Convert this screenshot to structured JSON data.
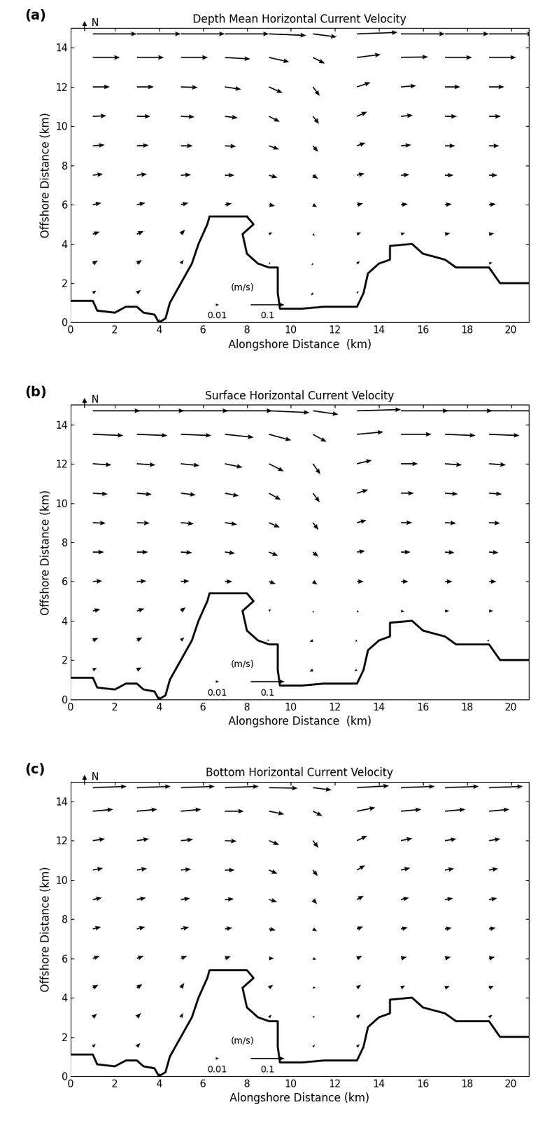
{
  "chart_data": [
    {
      "type": "quiver",
      "panel": "(a)",
      "title": "Depth Mean Horizontal Current Velocity",
      "x_label": "Alongshore Distance  (km)",
      "y_label": "Offshore Distance (km)",
      "north_label": "N",
      "key": {
        "unit": "(m/s)",
        "values": [
          0.01,
          0.1
        ]
      },
      "xlim": [
        0,
        20.8
      ],
      "ylim": [
        0,
        15
      ],
      "xticks": [
        0,
        2,
        4,
        6,
        8,
        10,
        12,
        14,
        16,
        18,
        20
      ],
      "yticks": [
        0,
        2,
        4,
        6,
        8,
        10,
        12,
        14
      ],
      "color": "#000000",
      "coastline": {
        "x": [
          0,
          1,
          1.2,
          2,
          2.5,
          3,
          3.3,
          3.8,
          4,
          4.3,
          4.5,
          5,
          5.5,
          5.8,
          6.2,
          6.3,
          8,
          8.3,
          7.8,
          8,
          8.5,
          9,
          9.4,
          9.4,
          9.5,
          10.5,
          11.5,
          13,
          13.3,
          13.5,
          14,
          14.5,
          14.5,
          15.5,
          16,
          17,
          17.5,
          19,
          19.5,
          20.8
        ],
        "y": [
          1.1,
          1.1,
          0.6,
          0.5,
          0.8,
          0.8,
          0.5,
          0.4,
          0,
          0.2,
          1,
          2,
          3,
          4,
          5,
          5.4,
          5.4,
          5,
          4.5,
          3.5,
          3,
          2.8,
          2.8,
          1.5,
          0.7,
          0.7,
          0.8,
          0.8,
          1.5,
          2.5,
          3,
          3.2,
          3.9,
          4,
          3.5,
          3.2,
          2.8,
          2.8,
          2,
          2
        ]
      },
      "x": [
        1,
        3,
        5,
        7,
        9,
        11,
        13,
        15,
        17,
        19
      ],
      "y": [
        1.5,
        3,
        4.5,
        6,
        7.5,
        9,
        10.5,
        12,
        13.5,
        14.7
      ],
      "u": [
        [
          0.01,
          0.012,
          null,
          null,
          null,
          -0.005,
          0.005,
          null,
          null,
          null
        ],
        [
          0.015,
          0.015,
          0.008,
          null,
          0.005,
          -0.004,
          0.008,
          null,
          null,
          0.01
        ],
        [
          0.02,
          0.02,
          0.012,
          null,
          0.01,
          0.006,
          0.012,
          0.012,
          0.015,
          0.015
        ],
        [
          0.025,
          0.025,
          0.022,
          0.02,
          0.018,
          0.012,
          0.018,
          0.02,
          0.02,
          0.02
        ],
        [
          0.03,
          0.03,
          0.03,
          0.028,
          0.025,
          0.015,
          0.022,
          0.025,
          0.025,
          0.025
        ],
        [
          0.035,
          0.035,
          0.035,
          0.033,
          0.03,
          0.015,
          0.025,
          0.03,
          0.03,
          0.03
        ],
        [
          0.04,
          0.04,
          0.04,
          0.038,
          0.032,
          0.018,
          0.03,
          0.035,
          0.035,
          0.035
        ],
        [
          0.05,
          0.05,
          0.05,
          0.048,
          0.04,
          0.02,
          0.04,
          0.045,
          0.045,
          0.045
        ],
        [
          0.08,
          0.08,
          0.08,
          0.075,
          0.06,
          0.035,
          0.07,
          0.08,
          0.08,
          0.08
        ],
        [
          0.13,
          0.13,
          0.13,
          0.13,
          0.11,
          0.07,
          0.12,
          0.13,
          0.13,
          0.13
        ]
      ],
      "v": [
        [
          0.008,
          0.01,
          null,
          null,
          null,
          -0.008,
          0.006,
          null,
          null,
          null
        ],
        [
          0.01,
          0.012,
          0.012,
          null,
          0.004,
          -0.006,
          0.008,
          null,
          null,
          0.004
        ],
        [
          0.008,
          0.01,
          0.015,
          null,
          0.006,
          -0.006,
          0.006,
          0.004,
          0.003,
          0.002
        ],
        [
          0.006,
          0.006,
          0.006,
          0.004,
          -0.004,
          -0.008,
          0.004,
          0.002,
          0.002,
          0.002
        ],
        [
          0.004,
          0.004,
          0.002,
          0.0,
          -0.008,
          -0.012,
          0.006,
          0.002,
          0.0,
          0.0
        ],
        [
          0.003,
          0.002,
          0.0,
          -0.002,
          -0.012,
          -0.02,
          0.01,
          0.003,
          0.0,
          0.0
        ],
        [
          0.002,
          0.0,
          -0.002,
          -0.005,
          -0.018,
          -0.025,
          0.015,
          0.004,
          0.0,
          0.0
        ],
        [
          0,
          0,
          -0.002,
          -0.008,
          -0.02,
          -0.03,
          0.015,
          0.004,
          0,
          0
        ],
        [
          0,
          0,
          0,
          -0.005,
          -0.015,
          -0.02,
          0.01,
          0.002,
          0,
          0
        ],
        [
          0,
          0,
          0,
          0,
          -0.005,
          -0.01,
          0.005,
          0,
          0,
          0
        ]
      ]
    },
    {
      "type": "quiver",
      "panel": "(b)",
      "title": "Surface Horizontal Current Velocity",
      "x_label": "Alongshore Distance  (km)",
      "y_label": "Offshore Distance (km)",
      "north_label": "N",
      "key": {
        "unit": "(m/s)",
        "values": [
          0.01,
          0.1
        ]
      },
      "xlim": [
        0,
        20.8
      ],
      "ylim": [
        0,
        15
      ],
      "xticks": [
        0,
        2,
        4,
        6,
        8,
        10,
        12,
        14,
        16,
        18,
        20
      ],
      "yticks": [
        0,
        2,
        4,
        6,
        8,
        10,
        12,
        14
      ],
      "color": "#000000",
      "coastline": {
        "x": [
          0,
          1,
          1.2,
          2,
          2.5,
          3,
          3.3,
          3.8,
          4,
          4.3,
          4.5,
          5,
          5.5,
          5.8,
          6.2,
          6.3,
          8,
          8.3,
          7.8,
          8,
          8.5,
          9,
          9.4,
          9.4,
          9.5,
          10.5,
          11.5,
          13,
          13.3,
          13.5,
          14,
          14.5,
          14.5,
          15.5,
          16,
          17,
          17.5,
          19,
          19.5,
          20.8
        ],
        "y": [
          1.1,
          1.1,
          0.6,
          0.5,
          0.8,
          0.8,
          0.5,
          0.4,
          0,
          0.2,
          1,
          2,
          3,
          4,
          5,
          5.4,
          5.4,
          5,
          4.5,
          3.5,
          3,
          2.8,
          2.8,
          1.5,
          0.7,
          0.7,
          0.8,
          0.8,
          1.5,
          2.5,
          3,
          3.2,
          3.9,
          4,
          3.5,
          3.2,
          2.8,
          2.8,
          2,
          2
        ]
      },
      "x": [
        1,
        3,
        5,
        7,
        9,
        11,
        13,
        15,
        17,
        19
      ],
      "y": [
        1.5,
        3,
        4.5,
        6,
        7.5,
        9,
        10.5,
        12,
        13.5,
        14.7
      ],
      "u": [
        [
          0.012,
          0.014,
          null,
          null,
          null,
          -0.01,
          -0.008,
          null,
          null,
          null
        ],
        [
          0.016,
          0.016,
          0.01,
          null,
          -0.006,
          -0.01,
          -0.006,
          null,
          null,
          -0.006
        ],
        [
          0.022,
          0.022,
          0.014,
          null,
          0.006,
          0.002,
          0.006,
          0.01,
          0.012,
          0.012
        ],
        [
          0.028,
          0.028,
          0.025,
          0.022,
          0.02,
          0.013,
          0.02,
          0.022,
          0.022,
          0.022
        ],
        [
          0.033,
          0.033,
          0.033,
          0.03,
          0.027,
          0.016,
          0.024,
          0.028,
          0.028,
          0.028
        ],
        [
          0.038,
          0.038,
          0.038,
          0.036,
          0.032,
          0.016,
          0.028,
          0.033,
          0.033,
          0.033
        ],
        [
          0.044,
          0.044,
          0.044,
          0.041,
          0.035,
          0.02,
          0.033,
          0.038,
          0.038,
          0.038
        ],
        [
          0.055,
          0.055,
          0.055,
          0.052,
          0.044,
          0.022,
          0.044,
          0.05,
          0.05,
          0.05
        ],
        [
          0.09,
          0.09,
          0.09,
          0.085,
          0.066,
          0.04,
          0.078,
          0.09,
          0.09,
          0.09
        ],
        [
          0.14,
          0.14,
          0.14,
          0.14,
          0.12,
          0.075,
          0.13,
          0.14,
          0.14,
          0.14
        ]
      ],
      "v": [
        [
          0.006,
          0.008,
          null,
          null,
          null,
          -0.006,
          -0.004,
          null,
          null,
          null
        ],
        [
          0.008,
          0.01,
          0.01,
          null,
          0.002,
          -0.004,
          -0.004,
          null,
          null,
          -0.002
        ],
        [
          0.006,
          0.008,
          0.012,
          null,
          0.006,
          -0.006,
          -0.004,
          -0.002,
          0,
          0
        ],
        [
          0.002,
          0.002,
          0.002,
          0.0,
          -0.008,
          -0.01,
          0.0,
          0,
          0,
          0
        ],
        [
          0,
          0,
          -0.002,
          -0.004,
          -0.012,
          -0.015,
          0.004,
          0,
          -0.002,
          -0.002
        ],
        [
          -0.002,
          -0.002,
          -0.004,
          -0.006,
          -0.016,
          -0.024,
          0.008,
          0,
          -0.002,
          -0.002
        ],
        [
          -0.003,
          -0.004,
          -0.006,
          -0.009,
          -0.022,
          -0.03,
          0.012,
          0,
          -0.003,
          -0.003
        ],
        [
          -0.004,
          -0.004,
          -0.006,
          -0.012,
          -0.025,
          -0.035,
          0.012,
          0,
          -0.004,
          -0.004
        ],
        [
          -0.004,
          -0.004,
          -0.004,
          -0.01,
          -0.02,
          -0.025,
          0.008,
          0,
          -0.004,
          -0.004
        ],
        [
          0,
          0,
          0,
          0,
          -0.006,
          -0.012,
          0.004,
          0,
          0,
          0
        ]
      ]
    },
    {
      "type": "quiver",
      "panel": "(c)",
      "title": "Bottom Horizontal Current Velocity",
      "x_label": "Alongshore Distance (km)",
      "y_label": "Offshore Distance (km)",
      "north_label": "N",
      "key": {
        "unit": "(m/s)",
        "values": [
          0.01,
          0.1
        ]
      },
      "xlim": [
        0,
        20.8
      ],
      "ylim": [
        0,
        15
      ],
      "xticks": [
        0,
        2,
        4,
        6,
        8,
        10,
        12,
        14,
        16,
        18,
        20
      ],
      "yticks": [
        0,
        2,
        4,
        6,
        8,
        10,
        12,
        14
      ],
      "color": "#000000",
      "coastline": {
        "x": [
          0,
          1,
          1.2,
          2,
          2.5,
          3,
          3.3,
          3.8,
          4,
          4.3,
          4.5,
          5,
          5.5,
          5.8,
          6.2,
          6.3,
          8,
          8.3,
          7.8,
          8,
          8.5,
          9,
          9.4,
          9.4,
          9.5,
          10.5,
          11.5,
          13,
          13.3,
          13.5,
          14,
          14.5,
          14.5,
          15.5,
          16,
          17,
          17.5,
          19,
          19.5,
          20.8
        ],
        "y": [
          1.1,
          1.1,
          0.6,
          0.5,
          0.8,
          0.8,
          0.5,
          0.4,
          0,
          0.2,
          1,
          2,
          3,
          4,
          5,
          5.4,
          5.4,
          5,
          4.5,
          3.5,
          3,
          2.8,
          2.8,
          1.5,
          0.7,
          0.7,
          0.8,
          0.8,
          1.5,
          2.5,
          3,
          3.2,
          3.9,
          4,
          3.5,
          3.2,
          2.8,
          2.8,
          2,
          2
        ]
      },
      "x": [
        1,
        3,
        5,
        7,
        9,
        11,
        13,
        15,
        17,
        19
      ],
      "y": [
        1.5,
        3,
        4.5,
        6,
        7.5,
        9,
        10.5,
        12,
        13.5,
        14.7
      ],
      "u": [
        [
          0.008,
          0.01,
          null,
          null,
          null,
          0.006,
          0.008,
          null,
          null,
          null
        ],
        [
          0.012,
          0.012,
          0.006,
          null,
          0.008,
          0.006,
          0.01,
          null,
          null,
          0.01
        ],
        [
          0.016,
          0.016,
          0.01,
          null,
          0.012,
          0.008,
          0.012,
          0.012,
          0.014,
          0.014
        ],
        [
          0.02,
          0.02,
          0.018,
          0.017,
          0.015,
          0.01,
          0.015,
          0.017,
          0.017,
          0.017
        ],
        [
          0.024,
          0.024,
          0.024,
          0.022,
          0.02,
          0.012,
          0.018,
          0.02,
          0.02,
          0.02
        ],
        [
          0.027,
          0.027,
          0.027,
          0.026,
          0.024,
          0.012,
          0.02,
          0.024,
          0.024,
          0.024
        ],
        [
          0.03,
          0.03,
          0.03,
          0.029,
          0.025,
          0.014,
          0.024,
          0.027,
          0.027,
          0.027
        ],
        [
          0.036,
          0.036,
          0.036,
          0.035,
          0.03,
          0.016,
          0.03,
          0.034,
          0.034,
          0.034
        ],
        [
          0.06,
          0.06,
          0.06,
          0.056,
          0.045,
          0.028,
          0.054,
          0.06,
          0.06,
          0.06
        ],
        [
          0.1,
          0.1,
          0.1,
          0.1,
          0.085,
          0.055,
          0.095,
          0.1,
          0.1,
          0.1
        ]
      ],
      "v": [
        [
          0.01,
          0.012,
          null,
          null,
          null,
          0.006,
          0.008,
          null,
          null,
          null
        ],
        [
          0.012,
          0.014,
          0.014,
          null,
          0.008,
          0.004,
          0.01,
          null,
          null,
          0.008
        ],
        [
          0.01,
          0.012,
          0.016,
          null,
          0.01,
          0.002,
          0.01,
          0.008,
          0.006,
          0.006
        ],
        [
          0.008,
          0.008,
          0.008,
          0.007,
          0.0,
          -0.004,
          0.008,
          0.005,
          0.005,
          0.005
        ],
        [
          0.007,
          0.007,
          0.006,
          0.004,
          -0.004,
          -0.008,
          0.008,
          0.005,
          0.004,
          0.004
        ],
        [
          0.006,
          0.006,
          0.004,
          0.002,
          -0.008,
          -0.015,
          0.012,
          0.006,
          0.004,
          0.004
        ],
        [
          0.006,
          0.005,
          0.003,
          0.0,
          -0.012,
          -0.02,
          0.016,
          0.007,
          0.005,
          0.005
        ],
        [
          0.006,
          0.006,
          0.004,
          -0.002,
          -0.014,
          -0.024,
          0.016,
          0.008,
          0.006,
          0.006
        ],
        [
          0.006,
          0.006,
          0.006,
          0.0,
          -0.01,
          -0.016,
          0.012,
          0.006,
          0.006,
          0.006
        ],
        [
          0.004,
          0.004,
          0.004,
          0.004,
          -0.002,
          -0.008,
          0.006,
          0.004,
          0.004,
          0.004
        ]
      ]
    }
  ]
}
